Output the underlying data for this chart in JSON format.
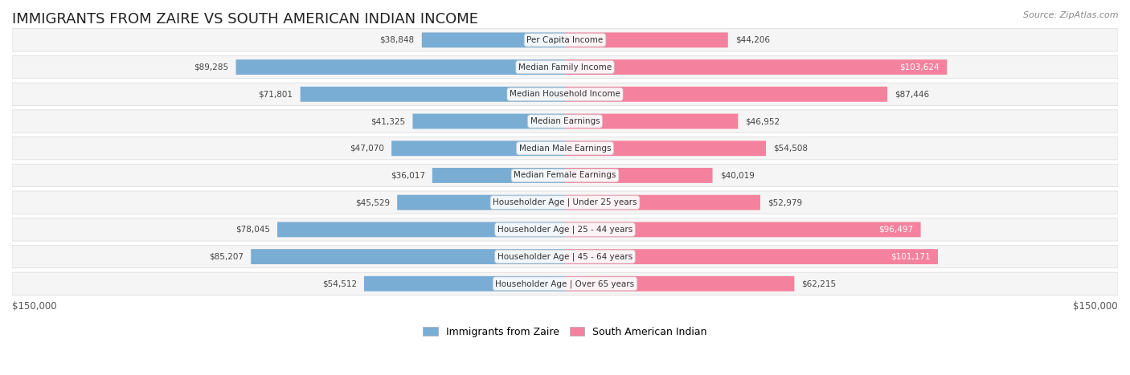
{
  "title": "IMMIGRANTS FROM ZAIRE VS SOUTH AMERICAN INDIAN INCOME",
  "source": "Source: ZipAtlas.com",
  "categories": [
    "Per Capita Income",
    "Median Family Income",
    "Median Household Income",
    "Median Earnings",
    "Median Male Earnings",
    "Median Female Earnings",
    "Householder Age | Under 25 years",
    "Householder Age | 25 - 44 years",
    "Householder Age | 45 - 64 years",
    "Householder Age | Over 65 years"
  ],
  "zaire_values": [
    38848,
    89285,
    71801,
    41325,
    47070,
    36017,
    45529,
    78045,
    85207,
    54512
  ],
  "indian_values": [
    44206,
    103624,
    87446,
    46952,
    54508,
    40019,
    52979,
    96497,
    101171,
    62215
  ],
  "zaire_color": "#7aadd4",
  "indian_color": "#f4829e",
  "zaire_color_dark": "#4472c4",
  "indian_color_dark": "#e05080",
  "bar_bg_color": "#f0f0f0",
  "row_bg_color": "#f5f5f5",
  "row_border_color": "#d8d8d8",
  "max_value": 150000,
  "label_color_default": "#555555",
  "label_color_white": "#ffffff",
  "white_threshold": 90000,
  "legend_zaire_label": "Immigrants from Zaire",
  "legend_indian_label": "South American Indian",
  "left_axis_label": "$150,000",
  "right_axis_label": "$150,000"
}
